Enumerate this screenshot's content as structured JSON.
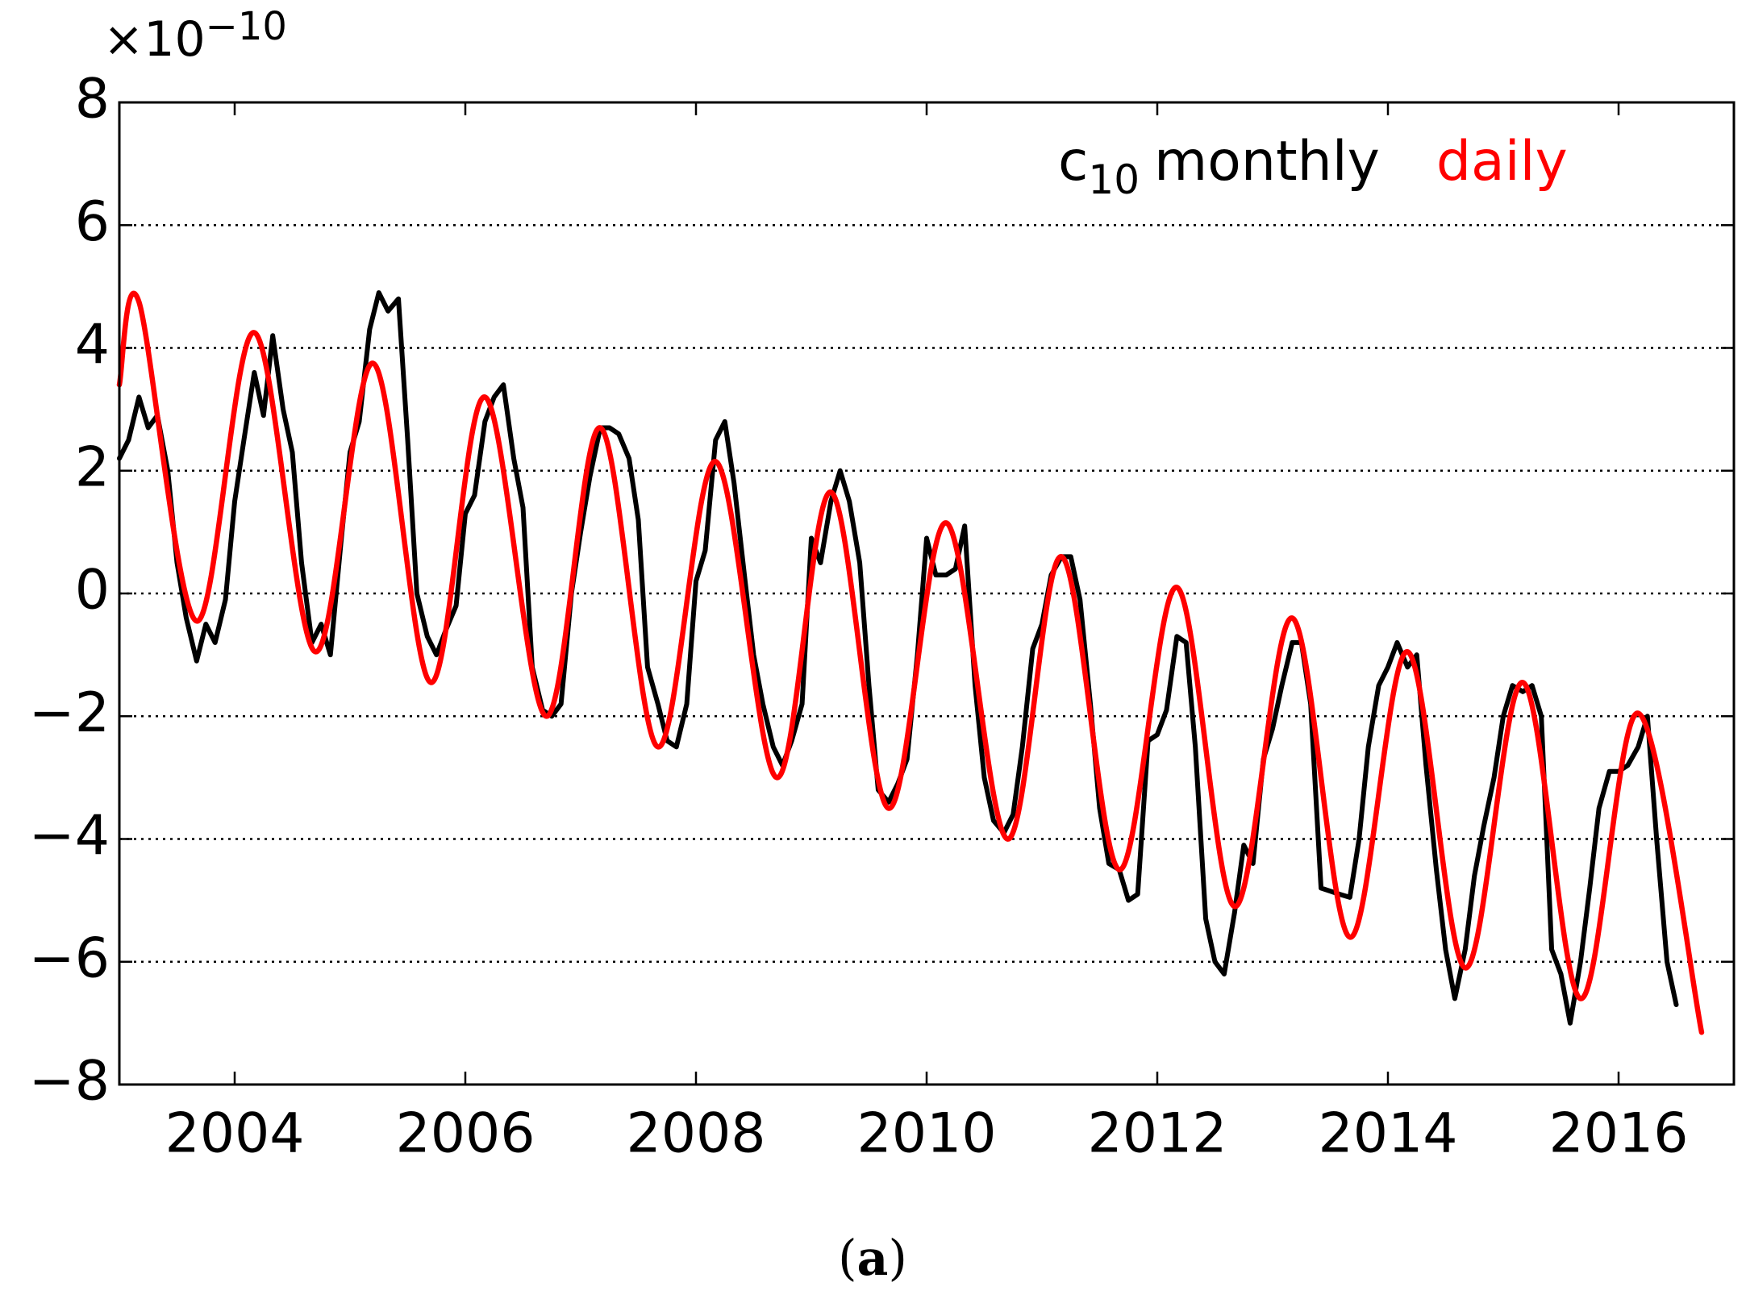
{
  "chart_data": {
    "type": "line",
    "y_multiplier": {
      "base": "×10",
      "exponent": "−10"
    },
    "legend_label": "c",
    "legend_subscript": "10",
    "legend": "upper right",
    "caption": "a",
    "xlim": [
      2003,
      2017
    ],
    "xticks": [
      2004,
      2006,
      2008,
      2010,
      2012,
      2014,
      2016
    ],
    "ylim": [
      -8,
      8
    ],
    "yticks": [
      {
        "value": -8,
        "label": "−8"
      },
      {
        "value": -6,
        "label": "−6"
      },
      {
        "value": -4,
        "label": "−4"
      },
      {
        "value": -2,
        "label": "−2"
      },
      0,
      2,
      4,
      6,
      8
    ],
    "grid": true,
    "series": [
      {
        "name": "monthly",
        "color": "#000000",
        "x": [
          2003.0,
          2003.08,
          2003.17,
          2003.25,
          2003.33,
          2003.42,
          2003.5,
          2003.58,
          2003.67,
          2003.75,
          2003.83,
          2003.92,
          2004.0,
          2004.08,
          2004.17,
          2004.25,
          2004.33,
          2004.42,
          2004.5,
          2004.58,
          2004.67,
          2004.75,
          2004.83,
          2004.92,
          2005.0,
          2005.08,
          2005.17,
          2005.25,
          2005.33,
          2005.42,
          2005.5,
          2005.58,
          2005.67,
          2005.75,
          2005.83,
          2005.92,
          2006.0,
          2006.08,
          2006.17,
          2006.25,
          2006.33,
          2006.42,
          2006.5,
          2006.58,
          2006.67,
          2006.75,
          2006.83,
          2006.92,
          2007.0,
          2007.08,
          2007.17,
          2007.25,
          2007.33,
          2007.42,
          2007.5,
          2007.58,
          2007.67,
          2007.75,
          2007.83,
          2007.92,
          2008.0,
          2008.08,
          2008.17,
          2008.25,
          2008.33,
          2008.42,
          2008.5,
          2008.58,
          2008.67,
          2008.75,
          2008.83,
          2008.92,
          2009.0,
          2009.08,
          2009.17,
          2009.25,
          2009.33,
          2009.42,
          2009.5,
          2009.58,
          2009.67,
          2009.75,
          2009.83,
          2009.92,
          2010.0,
          2010.08,
          2010.17,
          2010.25,
          2010.33,
          2010.42,
          2010.5,
          2010.58,
          2010.67,
          2010.75,
          2010.83,
          2010.92,
          2011.0,
          2011.08,
          2011.17,
          2011.25,
          2011.33,
          2011.42,
          2011.5,
          2011.58,
          2011.67,
          2011.75,
          2011.83,
          2011.92,
          2012.0,
          2012.08,
          2012.17,
          2012.25,
          2012.33,
          2012.42,
          2012.5,
          2012.58,
          2012.67,
          2012.75,
          2012.83,
          2012.92,
          2013.0,
          2013.08,
          2013.17,
          2013.25,
          2013.33,
          2013.42,
          2013.5,
          2013.58,
          2013.67,
          2013.75,
          2013.83,
          2013.92,
          2014.0,
          2014.08,
          2014.17,
          2014.25,
          2014.33,
          2014.42,
          2014.5,
          2014.58,
          2014.67,
          2014.75,
          2014.83,
          2014.92,
          2015.0,
          2015.08,
          2015.17,
          2015.25,
          2015.33,
          2015.42,
          2015.5,
          2015.58,
          2015.67,
          2015.75,
          2015.83,
          2015.92,
          2016.0,
          2016.08,
          2016.17,
          2016.25,
          2016.33,
          2016.42,
          2016.5
        ],
        "values": [
          2.2,
          2.5,
          3.2,
          2.7,
          2.9,
          2.0,
          0.5,
          -0.4,
          -1.1,
          -0.5,
          -0.8,
          -0.1,
          1.5,
          2.5,
          3.6,
          2.9,
          4.2,
          3.0,
          2.3,
          0.5,
          -0.8,
          -0.5,
          -1.0,
          0.8,
          2.3,
          2.8,
          4.3,
          4.9,
          4.6,
          4.8,
          2.5,
          0.0,
          -0.7,
          -1.0,
          -0.6,
          -0.2,
          1.3,
          1.6,
          2.8,
          3.2,
          3.4,
          2.2,
          1.4,
          -1.2,
          -1.9,
          -2.0,
          -1.8,
          0.0,
          1.0,
          1.9,
          2.7,
          2.7,
          2.6,
          2.2,
          1.2,
          -1.2,
          -1.8,
          -2.4,
          -2.5,
          -1.8,
          0.2,
          0.7,
          2.5,
          2.8,
          1.8,
          0.3,
          -1.0,
          -1.8,
          -2.5,
          -2.8,
          -2.4,
          -1.8,
          0.9,
          0.5,
          1.5,
          2.0,
          1.5,
          0.5,
          -1.5,
          -3.2,
          -3.4,
          -3.1,
          -2.7,
          -1.0,
          0.9,
          0.3,
          0.3,
          0.4,
          1.1,
          -1.5,
          -3.0,
          -3.7,
          -3.9,
          -3.6,
          -2.5,
          -0.9,
          -0.5,
          0.3,
          0.6,
          0.6,
          -0.1,
          -1.8,
          -3.5,
          -4.4,
          -4.5,
          -5.0,
          -4.9,
          -2.4,
          -2.3,
          -1.9,
          -0.7,
          -0.8,
          -2.5,
          -5.3,
          -6.0,
          -6.2,
          -5.2,
          -4.1,
          -4.4,
          -2.7,
          -2.2,
          -1.5,
          -0.8,
          -0.8,
          -1.8,
          -4.8,
          -4.85,
          -4.9,
          -4.95,
          -4.0,
          -2.5,
          -1.5,
          -1.2,
          -0.8,
          -1.2,
          -1.0,
          -2.8,
          -4.5,
          -5.8,
          -6.6,
          -5.8,
          -4.6,
          -3.8,
          -3.0,
          -2.0,
          -1.5,
          -1.6,
          -1.5,
          -2.0,
          -5.8,
          -6.2,
          -7.0,
          -6.0,
          -4.8,
          -3.5,
          -2.9,
          -2.9,
          -2.8,
          -2.5,
          -2.0,
          -4.0,
          -6.0,
          -6.7
        ]
      },
      {
        "name": "daily",
        "color": "#ff0000",
        "x": [
          2003.0,
          2003.17,
          2003.67,
          2004.17,
          2004.7,
          2005.2,
          2005.7,
          2006.17,
          2006.7,
          2007.17,
          2007.67,
          2008.17,
          2008.7,
          2009.17,
          2009.67,
          2010.17,
          2010.7,
          2011.17,
          2011.67,
          2012.17,
          2012.67,
          2013.17,
          2013.67,
          2014.17,
          2014.67,
          2015.17,
          2015.67,
          2016.17,
          2016.72
        ],
        "values": [
          3.4,
          4.75,
          -0.45,
          4.25,
          -0.95,
          3.75,
          -1.45,
          3.2,
          -2.0,
          2.7,
          -2.5,
          2.15,
          -3.0,
          1.65,
          -3.5,
          1.15,
          -4.0,
          0.6,
          -4.5,
          0.1,
          -5.1,
          -0.4,
          -5.6,
          -0.95,
          -6.1,
          -1.45,
          -6.6,
          -1.95,
          -7.15
        ]
      }
    ]
  }
}
